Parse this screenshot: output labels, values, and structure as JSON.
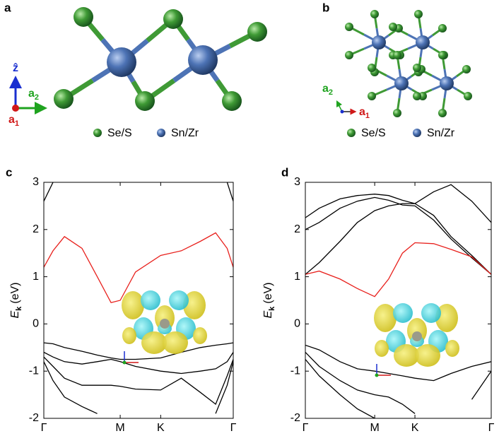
{
  "panel_a": {
    "label": "a",
    "axes": {
      "z": "ẑ",
      "a2": {
        "main": "a",
        "sub": "2"
      },
      "a1": {
        "main": "a",
        "sub": "1"
      }
    },
    "legend": [
      "Se/S",
      "Sn/Zr"
    ]
  },
  "panel_b": {
    "label": "b",
    "axes": {
      "a2": {
        "main": "a",
        "sub": "2"
      },
      "a1": {
        "main": "a",
        "sub": "1"
      }
    },
    "legend": [
      "Se/S",
      "Sn/Zr"
    ]
  },
  "chart_data": [
    {
      "type": "line",
      "panel": "c",
      "x": [
        0,
        0.12,
        0.27,
        0.5,
        0.7,
        0.88,
        1,
        1.2,
        1.53,
        1.8,
        2.05,
        2.25,
        2.4,
        2.48
      ],
      "xlim": [
        0,
        2.48
      ],
      "xticks": [
        {
          "value": 0,
          "label": "Γ"
        },
        {
          "value": 1,
          "label": "M"
        },
        {
          "value": 1.53,
          "label": "K"
        },
        {
          "value": 2.48,
          "label": "Γ"
        }
      ],
      "ylim": [
        -2,
        3
      ],
      "yticks": [
        -2,
        -1,
        0,
        1,
        2,
        3
      ],
      "y_label": {
        "main": "E",
        "sub": "k",
        "unit": "(eV)"
      },
      "series": [
        {
          "color": "#000000",
          "values": [
            2.6,
            3.0,
            null,
            null,
            null,
            null,
            null,
            null,
            null,
            null,
            null,
            null,
            3.0,
            2.6
          ]
        },
        {
          "color": "#e8201c",
          "values": [
            1.2,
            1.55,
            1.85,
            1.6,
            1.0,
            0.45,
            0.5,
            1.1,
            1.45,
            1.55,
            1.75,
            1.93,
            1.6,
            1.2
          ]
        },
        {
          "color": "#000000",
          "values": [
            -0.4,
            -0.42,
            -0.5,
            -0.58,
            -0.66,
            -0.72,
            -0.75,
            -0.75,
            -0.72,
            -0.6,
            -0.5,
            -0.45,
            -0.42,
            -0.4
          ]
        },
        {
          "color": "#000000",
          "values": [
            -0.6,
            -0.7,
            -0.8,
            -0.85,
            -0.8,
            -0.75,
            -0.8,
            -0.9,
            -1.0,
            -1.05,
            -1.0,
            -0.95,
            -0.8,
            -0.6
          ]
        },
        {
          "color": "#000000",
          "values": [
            -0.7,
            -0.9,
            -1.15,
            -1.3,
            -1.3,
            -1.3,
            -1.32,
            -1.38,
            -1.4,
            -1.15,
            -1.45,
            -1.7,
            -1.1,
            -0.75
          ]
        },
        {
          "color": "#000000",
          "values": [
            -0.8,
            -1.2,
            -1.55,
            -1.75,
            -1.9,
            null,
            null,
            null,
            null,
            null,
            null,
            -1.9,
            -1.3,
            -0.8
          ]
        }
      ]
    },
    {
      "type": "line",
      "panel": "d",
      "x": [
        0,
        0.2,
        0.5,
        0.75,
        1,
        1.2,
        1.4,
        1.58,
        1.85,
        2.1,
        2.4,
        2.68
      ],
      "xlim": [
        0,
        2.68
      ],
      "xticks": [
        {
          "value": 0,
          "label": "Γ"
        },
        {
          "value": 1,
          "label": "M"
        },
        {
          "value": 1.58,
          "label": "K"
        },
        {
          "value": 2.68,
          "label": "Γ"
        }
      ],
      "ylim": [
        -2,
        3
      ],
      "yticks": [
        -2,
        -1,
        0,
        1,
        2,
        3
      ],
      "y_label": {
        "main": "E",
        "sub": "k",
        "unit": "(eV)"
      },
      "series": [
        {
          "color": "#000000",
          "values": [
            2.25,
            2.45,
            2.65,
            2.72,
            2.75,
            2.72,
            2.62,
            2.55,
            2.8,
            2.95,
            2.6,
            2.15
          ]
        },
        {
          "color": "#000000",
          "values": [
            2.0,
            2.15,
            2.45,
            2.6,
            2.68,
            2.62,
            2.52,
            2.5,
            2.2,
            1.8,
            1.4,
            1.05
          ]
        },
        {
          "color": "#000000",
          "values": [
            1.05,
            1.3,
            1.75,
            2.15,
            2.4,
            2.5,
            2.55,
            2.55,
            2.3,
            1.85,
            1.45,
            1.05
          ]
        },
        {
          "color": "#e8201c",
          "values": [
            1.05,
            1.12,
            0.95,
            0.75,
            0.58,
            0.95,
            1.5,
            1.72,
            1.7,
            1.58,
            1.42,
            1.05
          ]
        },
        {
          "color": "#000000",
          "values": [
            -0.45,
            -0.55,
            -0.8,
            -0.95,
            -1.0,
            -1.05,
            -1.1,
            -1.15,
            -1.2,
            -1.05,
            -0.9,
            -0.8
          ]
        },
        {
          "color": "#000000",
          "values": [
            -0.6,
            -0.9,
            -1.2,
            -1.4,
            -1.5,
            -1.55,
            -1.7,
            -1.9,
            null,
            null,
            -1.6,
            -1.0
          ]
        },
        {
          "color": "#000000",
          "values": [
            -0.75,
            -1.1,
            -1.5,
            -1.8,
            -2.0,
            null,
            null,
            null,
            null,
            null,
            null,
            -1.3
          ]
        }
      ]
    }
  ]
}
